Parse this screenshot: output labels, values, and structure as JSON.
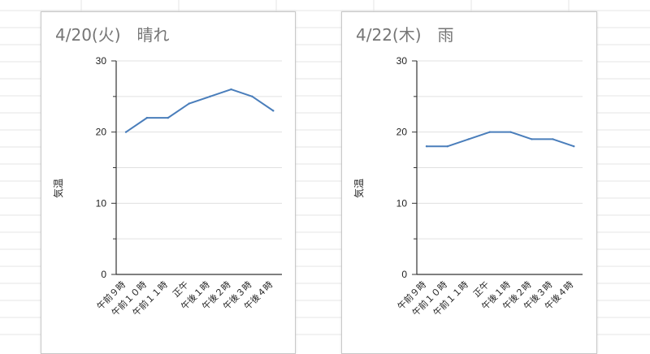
{
  "chart_data": [
    {
      "type": "line",
      "title": "4/20(火)　晴れ",
      "ylabel": "気温",
      "xlabel": "",
      "ylim": [
        0,
        30
      ],
      "yticks": [
        0,
        10,
        20,
        30
      ],
      "grid": true,
      "categories": [
        "午前９時",
        "午前１０時",
        "午前１１時",
        "正午",
        "午後１時",
        "午後２時",
        "午後３時",
        "午後４時"
      ],
      "series": [
        {
          "values": [
            20,
            22,
            22,
            24,
            25,
            26,
            25,
            23
          ]
        }
      ]
    },
    {
      "type": "line",
      "title": "4/22(木)　雨",
      "ylabel": "気温",
      "xlabel": "",
      "ylim": [
        0,
        30
      ],
      "yticks": [
        0,
        10,
        20,
        30
      ],
      "grid": true,
      "categories": [
        "午前９時",
        "午前１０時",
        "午前１１時",
        "正午",
        "午後１時",
        "午後２時",
        "午後３時",
        "午後４時"
      ],
      "series": [
        {
          "values": [
            18,
            18,
            19,
            20,
            20,
            19,
            19,
            18
          ]
        }
      ]
    }
  ],
  "colors": {
    "line": "#4a7ebb",
    "grid": "#e0e0e0",
    "axis": "#333333",
    "sheet_grid": "#e6e6e6"
  }
}
